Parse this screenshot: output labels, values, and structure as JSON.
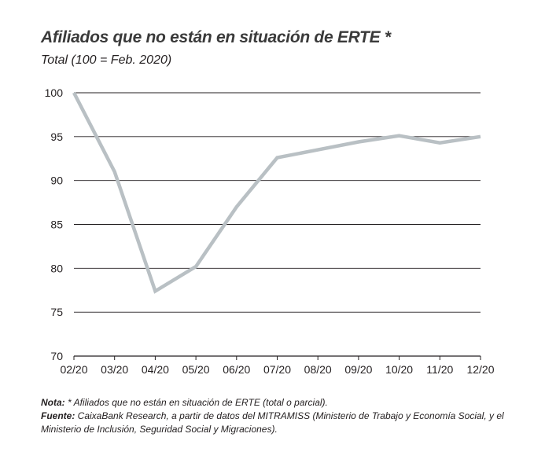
{
  "title": "Afiliados que no están en situación de ERTE *",
  "subtitle": "Total (100 = Feb. 2020)",
  "chart_data": {
    "type": "line",
    "title": "Afiliados que no están en situación de ERTE *",
    "subtitle": "Total (100 = Feb. 2020)",
    "xlabel": "",
    "ylabel": "",
    "x": [
      "02/20",
      "03/20",
      "04/20",
      "05/20",
      "06/20",
      "07/20",
      "08/20",
      "09/20",
      "10/20",
      "11/20",
      "12/20"
    ],
    "series": [
      {
        "values": [
          100,
          91,
          77.4,
          80.2,
          87,
          92.6,
          93.5,
          94.4,
          95.1,
          94.3,
          95.0
        ],
        "color": "#b9c0c4"
      }
    ],
    "y_ticks": [
      "100",
      "95",
      "90",
      "85",
      "80",
      "75",
      "70"
    ],
    "ylim": [
      70,
      100
    ],
    "grid": "horizontal",
    "legend": "none"
  },
  "notes": {
    "nota_label": "Nota:",
    "nota_text": " * Afiliados que no están en situación de ERTE (total o parcial).",
    "fuente_label": "Fuente:",
    "fuente_text": " CaixaBank Research, a partir de datos del MITRAMISS (Ministerio de Trabajo y Economía Social, y el Ministerio de Inclusión, Seguridad Social y Migraciones)."
  }
}
